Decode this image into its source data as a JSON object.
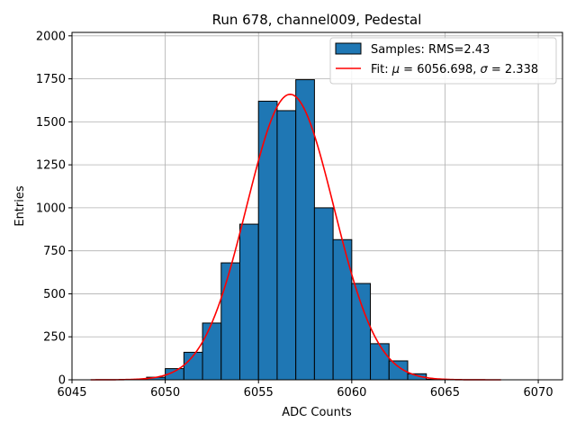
{
  "chart_data": {
    "type": "bar",
    "title": "Run 678, channel009, Pedestal",
    "xlabel": "ADC Counts",
    "ylabel": "Entries",
    "xlim": [
      6045,
      6071.3
    ],
    "ylim": [
      0,
      2020
    ],
    "xticks": [
      6045,
      6050,
      6055,
      6060,
      6065,
      6070
    ],
    "yticks": [
      0,
      250,
      500,
      750,
      1000,
      1250,
      1500,
      1750,
      2000
    ],
    "xtick_labels": [
      "6045",
      "6050",
      "6055",
      "6060",
      "6065",
      "6070"
    ],
    "ytick_labels": [
      "0",
      "250",
      "500",
      "750",
      "1000",
      "1250",
      "1500",
      "1750",
      "2000"
    ],
    "grid": true,
    "legend_position": "top-right",
    "histogram": {
      "name": "Samples: RMS=2.43",
      "color": "#1f77b4",
      "edgecolor": "#000000",
      "bins": [
        {
          "x0": 6049,
          "x1": 6050,
          "count": 15
        },
        {
          "x0": 6050,
          "x1": 6051,
          "count": 65
        },
        {
          "x0": 6051,
          "x1": 6052,
          "count": 160
        },
        {
          "x0": 6052,
          "x1": 6053,
          "count": 330
        },
        {
          "x0": 6053,
          "x1": 6054,
          "count": 680
        },
        {
          "x0": 6054,
          "x1": 6055,
          "count": 905
        },
        {
          "x0": 6055,
          "x1": 6056,
          "count": 1620
        },
        {
          "x0": 6056,
          "x1": 6057,
          "count": 1565
        },
        {
          "x0": 6057,
          "x1": 6058,
          "count": 1745
        },
        {
          "x0": 6058,
          "x1": 6059,
          "count": 1000
        },
        {
          "x0": 6059,
          "x1": 6060,
          "count": 815
        },
        {
          "x0": 6060,
          "x1": 6061,
          "count": 560
        },
        {
          "x0": 6061,
          "x1": 6062,
          "count": 210
        },
        {
          "x0": 6062,
          "x1": 6063,
          "count": 110
        },
        {
          "x0": 6063,
          "x1": 6064,
          "count": 35
        },
        {
          "x0": 6064,
          "x1": 6065,
          "count": 3
        }
      ]
    },
    "fit": {
      "label_prefix": "Fit: ",
      "mu_symbol": "μ",
      "sigma_symbol": "σ",
      "mu_text": " = 6056.698, ",
      "sigma_text": " = 2.338",
      "color": "#ff0000",
      "mu": 6056.698,
      "sigma": 2.338,
      "amplitude": 1660,
      "x_range": [
        6046,
        6068
      ]
    }
  }
}
